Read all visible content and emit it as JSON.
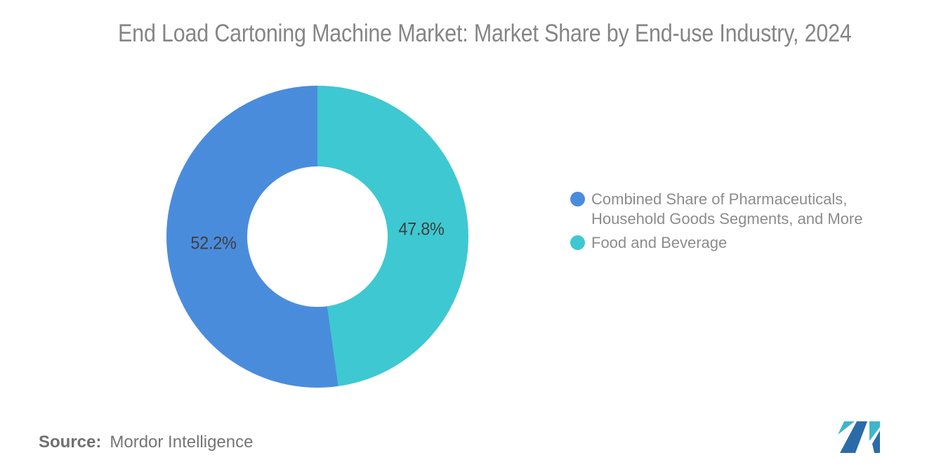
{
  "title": "End Load Cartoning Machine Market: Market Share by End-use Industry, 2024",
  "chart_data": {
    "type": "pie",
    "subtype": "donut",
    "title": "End Load Cartoning Machine Market: Market Share by End-use Industry, 2024",
    "start": "top",
    "direction": "clockwise",
    "inner_radius_ratio": 0.465,
    "legend_position": "right",
    "slices": [
      {
        "label": "Food and Beverage",
        "value": 47.8,
        "display": "47.8%",
        "color": "#3EC8D1"
      },
      {
        "label": "Combined Share of Pharmaceuticals, Household Goods Segments, and More",
        "value": 52.2,
        "display": "52.2%",
        "color": "#4A8CDC"
      }
    ]
  },
  "legend": {
    "items": [
      {
        "lines": [
          "Combined Share of Pharmaceuticals,",
          "Household Goods Segments, and More"
        ],
        "color": "#4A8CDC"
      },
      {
        "lines": [
          "Food and Beverage"
        ],
        "color": "#3EC8D1"
      }
    ]
  },
  "source": {
    "label": "Source:",
    "value": "Mordor Intelligence"
  },
  "logo": {
    "name": "mordor-intelligence-logo",
    "blue": "#2B6CA8",
    "teal": "#3FB6C9"
  },
  "colors": {
    "background": "#FFFFFF",
    "title_text": "#858585",
    "legend_text": "#8C8C8C",
    "slice_label_text": "#3F3F3F",
    "source_text": "#6F6F6F"
  }
}
